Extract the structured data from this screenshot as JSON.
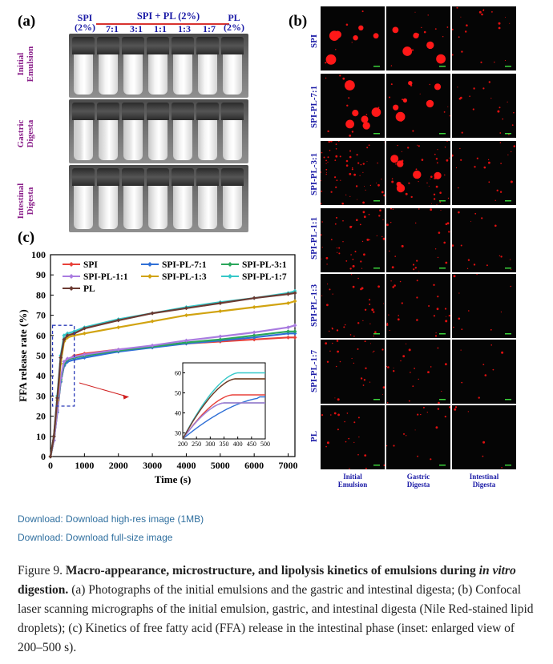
{
  "panel_a": {
    "label": "(a)",
    "header": {
      "spi_top": "SPI",
      "spi_bottom": "(2%)",
      "group": "SPI + PL (2%)",
      "pl_top": "PL",
      "pl_bottom": "(2%)"
    },
    "ratios": [
      "7:1",
      "3:1",
      "1:1",
      "1:3",
      "1:7"
    ],
    "rows": [
      {
        "line1": "Initial",
        "line2": "Emulsion"
      },
      {
        "line1": "Gastric",
        "line2": "Digesta"
      },
      {
        "line1": "Intestinal",
        "line2": "Digesta"
      }
    ]
  },
  "panel_b": {
    "label": "(b)",
    "rows": [
      "SPI",
      "SPI-PL-7:1",
      "SPI-PL-3:1",
      "SPI-PL-1:1",
      "SPI-PL-1:3",
      "SPI-PL-1:7",
      "PL"
    ],
    "columns": [
      {
        "line1": "Initial",
        "line2": "Emulsion"
      },
      {
        "line1": "Gastric",
        "line2": "Digesta"
      },
      {
        "line1": "Intestinal",
        "line2": "Digesta"
      }
    ]
  },
  "panel_c": {
    "label": "(c)"
  },
  "chart_data": {
    "type": "line",
    "title": "",
    "xlabel": "Time (s)",
    "ylabel": "FFA release rate (%)",
    "xlim": [
      0,
      7200
    ],
    "ylim": [
      0,
      100
    ],
    "xticks": [
      0,
      1000,
      2000,
      3000,
      4000,
      5000,
      6000,
      7000
    ],
    "yticks": [
      0,
      10,
      20,
      30,
      40,
      50,
      60,
      70,
      80,
      90,
      100
    ],
    "x": [
      0,
      100,
      200,
      300,
      400,
      500,
      700,
      1000,
      2000,
      3000,
      4000,
      5000,
      6000,
      7000,
      7200
    ],
    "series": [
      {
        "name": "SPI",
        "color": "#e8413a",
        "marker": "diamond",
        "values": [
          0,
          8,
          22,
          37,
          45,
          48,
          50,
          51,
          53,
          54.5,
          56,
          57,
          58,
          59,
          59
        ]
      },
      {
        "name": "SPI-PL-7:1",
        "color": "#2f6fd6",
        "marker": "diamond",
        "values": [
          0,
          8,
          22,
          37,
          45,
          47,
          48,
          49,
          52,
          54,
          56,
          57.5,
          59,
          61,
          61
        ]
      },
      {
        "name": "SPI-PL-3:1",
        "color": "#2aa65a",
        "marker": "diamond",
        "values": [
          0,
          8,
          23,
          38,
          46,
          48,
          49,
          50,
          52.5,
          54.5,
          56.5,
          58,
          60,
          62,
          62
        ]
      },
      {
        "name": "SPI-PL-1:1",
        "color": "#a97be0",
        "marker": "diamond",
        "values": [
          0,
          8,
          23,
          39,
          47,
          48.5,
          49.5,
          50.5,
          53,
          55,
          57.5,
          59.5,
          61.5,
          64,
          65
        ]
      },
      {
        "name": "SPI-PL-1:3",
        "color": "#d1a310",
        "marker": "diamond",
        "values": [
          0,
          10,
          28,
          46,
          57,
          59,
          60,
          61,
          64,
          67,
          70,
          72,
          74,
          76,
          77
        ]
      },
      {
        "name": "SPI-PL-1:7",
        "color": "#35c8c8",
        "marker": "diamond",
        "values": [
          0,
          10,
          30,
          50,
          60,
          61,
          62,
          64,
          68,
          71,
          74,
          76.5,
          78.5,
          81,
          82
        ]
      },
      {
        "name": "PL",
        "color": "#6b3a32",
        "marker": "diamond",
        "values": [
          0,
          10,
          29,
          49,
          58,
          60,
          61,
          63.5,
          67.5,
          71,
          73.5,
          76,
          78.5,
          80.5,
          81
        ]
      }
    ],
    "legend_position": "top",
    "inset": {
      "xlim": [
        200,
        500
      ],
      "ylim": [
        27,
        65
      ],
      "xticks": [
        200,
        250,
        300,
        350,
        400,
        450,
        500
      ],
      "yticks": [
        30,
        40,
        50,
        60
      ]
    }
  },
  "links": {
    "high_res": "Download: Download high-res image (1MB)",
    "full_size": "Download: Download full-size image"
  },
  "caption": {
    "prefix": "Figure 9. ",
    "bold_a": "Macro-appearance, microstructure, and lipolysis kinetics of emulsions during ",
    "bold_italic": "in vitro",
    "bold_b": " digestion.",
    "text": " (a) Photographs of the initial emulsions and the gastric and intestinal digesta; (b) Confocal laser scanning micrographs of the initial emulsion, gastric, and intestinal digesta (Nile Red-stained lipid droplets); (c) Kinetics of free fatty acid (FFA) release in the intestinal phase (inset: enlarged view of 200–500 s)."
  }
}
